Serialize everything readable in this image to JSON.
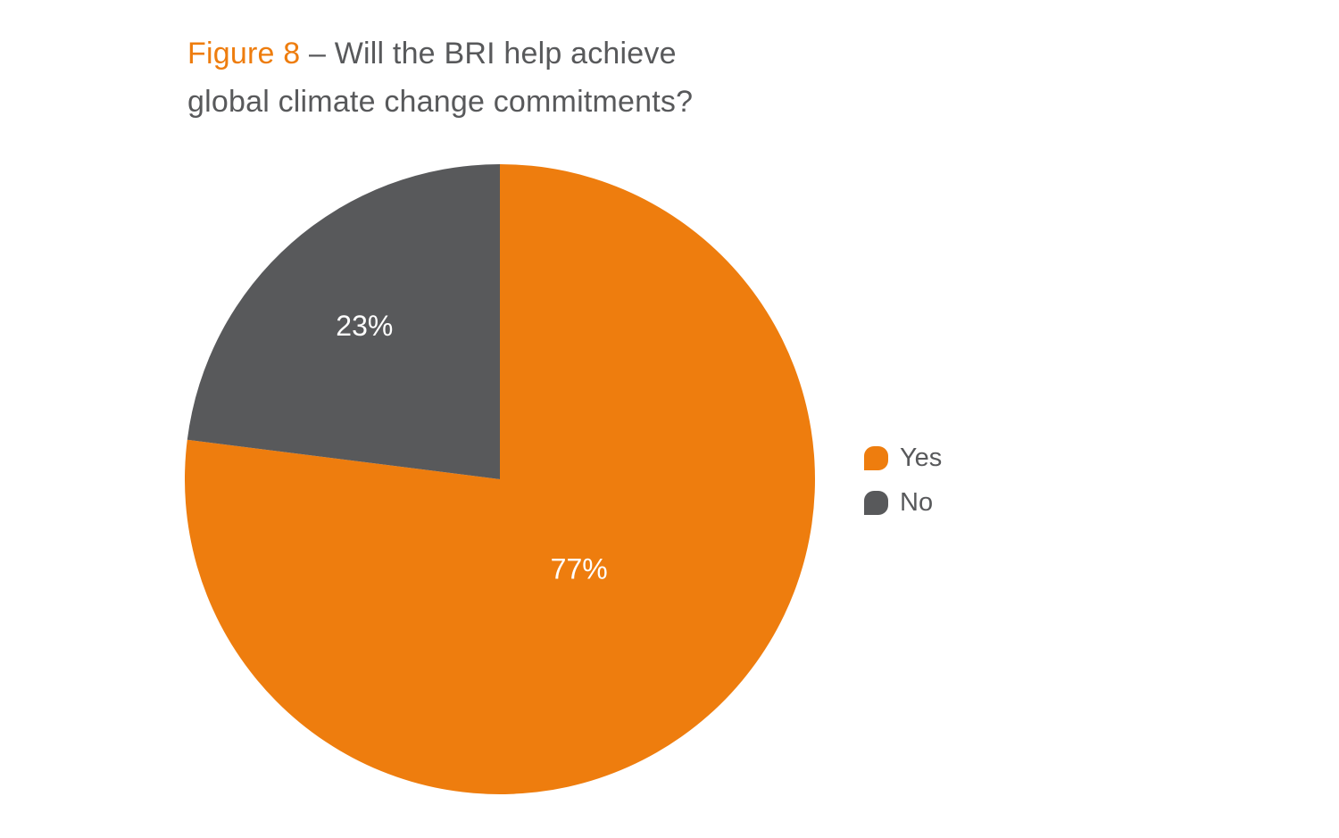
{
  "page": {
    "background": "#ffffff"
  },
  "title": {
    "figure_label": "Figure 8",
    "line1_rest": " – Will the BRI help achieve",
    "line2": "global climate change commitments?"
  },
  "chart_data": {
    "type": "pie",
    "title": "Figure 8 – Will the BRI help achieve global climate change commitments?",
    "labels": [
      "Yes",
      "No"
    ],
    "values": [
      77,
      23
    ],
    "value_labels": [
      "77%",
      "23%"
    ],
    "colors": [
      "#EE7D0E",
      "#58595B"
    ],
    "slice_label_color": "#ffffff",
    "title_accent_color": "#EE7D0E",
    "title_text_color": "#58595B",
    "start_angle_deg": -90,
    "direction": "clockwise",
    "label_radius_fractions": [
      0.38,
      0.65
    ],
    "legend_position": "right",
    "grid": false
  }
}
